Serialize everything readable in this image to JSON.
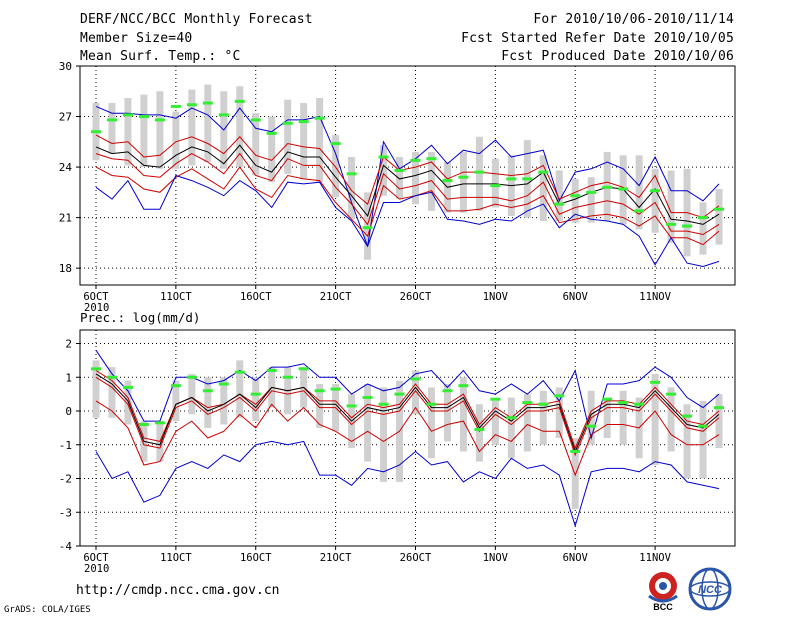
{
  "header": {
    "title": "DERF/NCC/BCC Monthly Forecast",
    "member": "Member Size=40",
    "variable": "Mean Surf. Temp.: °C",
    "period": "For 2010/10/06-2010/11/14",
    "started": "Fcst Started Refer Date 2010/10/05",
    "produced": "Fcst Produced Date 2010/10/06"
  },
  "footer": {
    "url": "http://cmdp.ncc.cma.gov.cn",
    "grads": "GrADS: COLA/IGES",
    "logo_bcc": "BCC",
    "logo_ncc": "NCC"
  },
  "colors": {
    "blue": "#0000cc",
    "red": "#cc0000",
    "black": "#000000",
    "green": "#33ee33",
    "gray": "#d0d0d0"
  },
  "chart_data": [
    {
      "type": "line",
      "title": "Mean Surf. Temp.: °C",
      "ylim": [
        17,
        30
      ],
      "yticks": [
        18,
        21,
        24,
        27,
        30
      ],
      "xticks": [
        {
          "day": 1,
          "label": "6OCT",
          "sub": "2010"
        },
        {
          "day": 6,
          "label": "11OCT"
        },
        {
          "day": 11,
          "label": "16OCT"
        },
        {
          "day": 16,
          "label": "21OCT"
        },
        {
          "day": 21,
          "label": "26OCT"
        },
        {
          "day": 26,
          "label": "1NOV"
        },
        {
          "day": 31,
          "label": "6NOV"
        },
        {
          "day": 36,
          "label": "11NOV"
        }
      ],
      "x_days": [
        1,
        2,
        3,
        4,
        5,
        6,
        7,
        8,
        9,
        10,
        11,
        12,
        13,
        14,
        15,
        16,
        17,
        18,
        19,
        20,
        21,
        22,
        23,
        24,
        25,
        26,
        27,
        28,
        29,
        30,
        31,
        32,
        33,
        34,
        35,
        36,
        37,
        38,
        39,
        40
      ],
      "series": [
        {
          "name": "max",
          "color": "blue",
          "values": [
            27.6,
            27.2,
            27.2,
            27.1,
            27.1,
            26.9,
            27.5,
            27.1,
            26.2,
            27.5,
            26.3,
            26.1,
            26.8,
            26.8,
            27.0,
            24.8,
            21.9,
            19.3,
            25.5,
            23.9,
            24.5,
            25.3,
            24.2,
            25.0,
            24.8,
            25.6,
            24.6,
            24.8,
            25.0,
            22.0,
            23.7,
            23.9,
            24.3,
            23.9,
            22.9,
            24.6,
            22.6,
            22.6,
            22.0,
            23.0
          ]
        },
        {
          "name": "upper",
          "color": "red",
          "values": [
            25.9,
            25.4,
            25.5,
            24.6,
            24.7,
            25.5,
            25.8,
            25.4,
            24.8,
            25.8,
            24.7,
            24.4,
            25.4,
            25.2,
            25.1,
            24.0,
            22.6,
            21.8,
            24.6,
            23.8,
            24.0,
            24.3,
            23.3,
            23.7,
            23.7,
            23.6,
            23.5,
            23.6,
            24.1,
            22.1,
            22.5,
            22.9,
            23.1,
            22.8,
            22.2,
            23.5,
            21.3,
            21.3,
            21.0,
            21.7
          ]
        },
        {
          "name": "mean",
          "color": "black",
          "values": [
            25.2,
            24.8,
            24.9,
            24.1,
            24.0,
            24.7,
            25.2,
            24.9,
            24.2,
            25.3,
            24.1,
            23.7,
            24.9,
            24.6,
            24.6,
            23.4,
            22.3,
            21.1,
            24.1,
            23.3,
            23.5,
            23.8,
            22.8,
            23.0,
            23.0,
            23.0,
            22.9,
            23.0,
            23.7,
            21.8,
            22.1,
            22.5,
            22.8,
            22.7,
            21.6,
            22.7,
            20.9,
            20.8,
            20.6,
            21.2
          ]
        },
        {
          "name": "lower",
          "color": "red",
          "values": [
            24.8,
            24.5,
            24.4,
            23.5,
            23.4,
            24.2,
            24.8,
            24.3,
            23.6,
            24.8,
            23.5,
            23.2,
            24.5,
            24.1,
            24.1,
            22.8,
            21.8,
            20.6,
            23.6,
            22.7,
            22.9,
            23.2,
            22.1,
            22.2,
            22.2,
            22.2,
            22.0,
            22.3,
            23.1,
            21.2,
            21.6,
            21.8,
            22.0,
            21.8,
            21.2,
            21.9,
            20.2,
            20.2,
            20.0,
            20.6
          ]
        },
        {
          "name": "lower2",
          "color": "red",
          "values": [
            24.0,
            23.5,
            23.4,
            22.7,
            22.5,
            23.4,
            23.9,
            23.3,
            22.7,
            24.0,
            22.7,
            22.2,
            23.5,
            23.3,
            23.2,
            21.9,
            20.9,
            19.9,
            22.9,
            22.1,
            22.3,
            22.6,
            21.4,
            21.4,
            21.5,
            21.8,
            21.6,
            21.8,
            22.3,
            20.7,
            20.9,
            21.1,
            21.2,
            21.0,
            20.5,
            21.1,
            19.8,
            19.8,
            19.4,
            20.2
          ]
        },
        {
          "name": "min",
          "color": "blue",
          "values": [
            22.8,
            22.1,
            23.2,
            21.5,
            21.5,
            23.5,
            23.2,
            22.8,
            22.3,
            23.2,
            22.6,
            21.6,
            23.1,
            23.0,
            23.1,
            21.6,
            20.8,
            19.3,
            21.9,
            21.9,
            22.3,
            22.5,
            20.9,
            20.8,
            20.6,
            20.9,
            20.8,
            21.4,
            21.8,
            20.4,
            21.2,
            20.9,
            20.8,
            20.6,
            19.9,
            18.2,
            19.8,
            18.3,
            18.1,
            18.4
          ]
        }
      ],
      "ensemble_boxes": [
        [
          24.4,
          27.8
        ],
        [
          24.8,
          27.8
        ],
        [
          24.1,
          28.1
        ],
        [
          24.0,
          28.3
        ],
        [
          23.9,
          28.5
        ],
        [
          23.9,
          27.3
        ],
        [
          24.1,
          28.6
        ],
        [
          24.3,
          28.9
        ],
        [
          23.9,
          28.5
        ],
        [
          24.0,
          28.8
        ],
        [
          23.5,
          27.2
        ],
        [
          23.1,
          27.0
        ],
        [
          23.6,
          28.0
        ],
        [
          23.3,
          27.8
        ],
        [
          23.1,
          28.1
        ],
        [
          22.2,
          25.9
        ],
        [
          20.9,
          24.6
        ],
        [
          18.5,
          22.5
        ],
        [
          22.3,
          25.3
        ],
        [
          22.1,
          24.6
        ],
        [
          21.8,
          24.9
        ],
        [
          21.4,
          24.9
        ],
        [
          21.3,
          24.3
        ],
        [
          21.3,
          24.9
        ],
        [
          21.4,
          25.8
        ],
        [
          21.6,
          24.5
        ],
        [
          21.1,
          24.7
        ],
        [
          21.0,
          25.6
        ],
        [
          20.8,
          24.7
        ],
        [
          20.8,
          23.8
        ],
        [
          20.7,
          23.3
        ],
        [
          20.7,
          23.4
        ],
        [
          20.8,
          24.9
        ],
        [
          20.6,
          24.7
        ],
        [
          20.3,
          24.7
        ],
        [
          20.1,
          23.9
        ],
        [
          19.5,
          23.8
        ],
        [
          18.7,
          23.9
        ],
        [
          18.8,
          21.9
        ],
        [
          19.4,
          22.7
        ]
      ],
      "observed": [
        26.1,
        26.8,
        27.1,
        27.0,
        26.8,
        27.6,
        27.7,
        27.8,
        27.1,
        27.9,
        26.8,
        26.0,
        26.6,
        26.7,
        26.9,
        25.4,
        23.6,
        20.4,
        24.6,
        23.8,
        24.4,
        24.5,
        23.2,
        23.4,
        23.7,
        22.9,
        23.3,
        23.3,
        23.7,
        21.8,
        22.3,
        22.5,
        22.8,
        22.7,
        21.4,
        22.6,
        20.6,
        20.5,
        21.0,
        21.5
      ]
    },
    {
      "type": "line",
      "title": "Prec.: log(mm/d)",
      "ylim": [
        -4,
        2.4
      ],
      "yticks": [
        -4,
        -3,
        -2,
        -1,
        0,
        1,
        2
      ],
      "xticks": [
        {
          "day": 1,
          "label": "6OCT",
          "sub": "2010"
        },
        {
          "day": 6,
          "label": "11OCT"
        },
        {
          "day": 11,
          "label": "16OCT"
        },
        {
          "day": 16,
          "label": "21OCT"
        },
        {
          "day": 21,
          "label": "26OCT"
        },
        {
          "day": 26,
          "label": "1NOV"
        },
        {
          "day": 31,
          "label": "6NOV"
        },
        {
          "day": 36,
          "label": "11NOV"
        }
      ],
      "x_days": [
        1,
        2,
        3,
        4,
        5,
        6,
        7,
        8,
        9,
        10,
        11,
        12,
        13,
        14,
        15,
        16,
        17,
        18,
        19,
        20,
        21,
        22,
        23,
        24,
        25,
        26,
        27,
        28,
        29,
        30,
        31,
        32,
        33,
        34,
        35,
        36,
        37,
        38,
        39,
        40
      ],
      "series": [
        {
          "name": "max",
          "color": "blue",
          "values": [
            1.8,
            1.1,
            0.6,
            -0.3,
            -0.3,
            1.0,
            1.0,
            0.8,
            0.9,
            1.2,
            0.9,
            1.3,
            1.3,
            1.4,
            1.0,
            1.0,
            0.5,
            0.8,
            0.6,
            0.7,
            1.1,
            1.2,
            0.7,
            1.2,
            0.6,
            0.5,
            0.8,
            0.5,
            0.9,
            0.3,
            1.2,
            -0.8,
            0.8,
            0.8,
            0.9,
            1.3,
            1.0,
            0.4,
            0.1,
            0.5
          ]
        },
        {
          "name": "upper",
          "color": "red",
          "values": [
            1.2,
            0.9,
            0.4,
            -0.8,
            -0.9,
            0.2,
            0.4,
            0.1,
            0.2,
            0.5,
            0.2,
            0.7,
            0.6,
            0.7,
            0.3,
            0.3,
            -0.2,
            0.2,
            0.1,
            0.2,
            0.8,
            0.2,
            0.2,
            0.5,
            -0.4,
            0.1,
            -0.2,
            0.2,
            0.2,
            0.3,
            -1.1,
            0.0,
            0.3,
            0.3,
            0.2,
            0.7,
            0.2,
            -0.3,
            -0.4,
            0.0
          ]
        },
        {
          "name": "mean",
          "color": "black",
          "values": [
            1.1,
            0.8,
            0.3,
            -0.9,
            -1.0,
            0.2,
            0.4,
            0.0,
            0.2,
            0.5,
            0.1,
            0.7,
            0.6,
            0.7,
            0.2,
            0.2,
            -0.3,
            0.1,
            0.0,
            0.1,
            0.7,
            0.1,
            0.1,
            0.4,
            -0.5,
            0.0,
            -0.3,
            0.1,
            0.1,
            0.2,
            -1.2,
            -0.1,
            0.2,
            0.2,
            0.1,
            0.6,
            0.1,
            -0.4,
            -0.5,
            -0.1
          ]
        },
        {
          "name": "lower",
          "color": "red",
          "values": [
            1.0,
            0.7,
            0.2,
            -1.0,
            -1.1,
            0.1,
            0.3,
            -0.1,
            0.1,
            0.4,
            0.0,
            0.6,
            0.5,
            0.6,
            0.1,
            0.1,
            -0.4,
            0.0,
            -0.1,
            0.0,
            0.6,
            0.0,
            0.0,
            0.3,
            -0.6,
            -0.1,
            -0.4,
            0.0,
            0.0,
            0.1,
            -1.3,
            -0.2,
            0.1,
            0.1,
            0.0,
            0.5,
            0.0,
            -0.5,
            -0.6,
            -0.2
          ]
        },
        {
          "name": "lower2",
          "color": "red",
          "values": [
            0.3,
            0.0,
            -0.5,
            -1.6,
            -1.5,
            -0.6,
            -0.3,
            -0.8,
            -0.6,
            -0.1,
            -0.5,
            0.2,
            -0.3,
            0.1,
            -0.4,
            -0.6,
            -0.9,
            -0.6,
            -0.9,
            -0.6,
            0.1,
            -0.6,
            -0.4,
            -0.3,
            -1.2,
            -0.7,
            -0.9,
            -0.4,
            -0.6,
            -0.6,
            -1.9,
            -0.7,
            -0.4,
            -0.4,
            -0.5,
            0.0,
            -0.7,
            -1.0,
            -1.0,
            -0.7
          ]
        },
        {
          "name": "min",
          "color": "blue",
          "values": [
            -1.2,
            -2.0,
            -1.8,
            -2.7,
            -2.5,
            -1.7,
            -1.5,
            -1.7,
            -1.3,
            -1.5,
            -1.0,
            -0.9,
            -1.0,
            -0.9,
            -1.9,
            -1.9,
            -2.2,
            -1.7,
            -1.8,
            -1.6,
            -1.2,
            -1.6,
            -1.5,
            -2.1,
            -1.8,
            -2.0,
            -1.4,
            -1.7,
            -1.6,
            -1.9,
            -3.4,
            -1.8,
            -1.7,
            -1.7,
            -1.8,
            -1.5,
            -1.6,
            -2.1,
            -2.2,
            -2.3
          ]
        }
      ],
      "ensemble_boxes": [
        [
          -0.2,
          1.5
        ],
        [
          -0.2,
          1.3
        ],
        [
          -0.4,
          0.9
        ],
        [
          -1.5,
          -0.3
        ],
        [
          -1.5,
          -0.3
        ],
        [
          -0.3,
          0.9
        ],
        [
          -0.1,
          1.1
        ],
        [
          -0.5,
          1.0
        ],
        [
          -0.4,
          1.0
        ],
        [
          -0.2,
          1.5
        ],
        [
          -0.3,
          1.0
        ],
        [
          0.1,
          1.3
        ],
        [
          -0.1,
          1.3
        ],
        [
          0.1,
          1.3
        ],
        [
          -0.5,
          0.8
        ],
        [
          -0.6,
          0.8
        ],
        [
          -1.1,
          0.5
        ],
        [
          -1.5,
          0.8
        ],
        [
          -2.1,
          0.7
        ],
        [
          -2.1,
          0.9
        ],
        [
          -0.1,
          1.2
        ],
        [
          -1.4,
          0.7
        ],
        [
          -0.9,
          0.8
        ],
        [
          -1.2,
          1.0
        ],
        [
          -1.5,
          0.2
        ],
        [
          -1.0,
          0.3
        ],
        [
          -1.4,
          0.4
        ],
        [
          -1.2,
          0.5
        ],
        [
          -1.0,
          0.6
        ],
        [
          -0.8,
          0.7
        ],
        [
          -2.9,
          -0.8
        ],
        [
          -1.0,
          0.6
        ],
        [
          -0.8,
          0.4
        ],
        [
          -1.0,
          0.6
        ],
        [
          -1.4,
          0.4
        ],
        [
          -1.6,
          1.1
        ],
        [
          -1.2,
          0.7
        ],
        [
          -2.0,
          0.2
        ],
        [
          -2.0,
          0.3
        ],
        [
          -1.1,
          0.5
        ]
      ],
      "observed": [
        1.25,
        1.0,
        0.7,
        -0.4,
        -0.35,
        0.75,
        1.0,
        0.6,
        0.8,
        1.15,
        0.5,
        1.2,
        1.0,
        1.25,
        0.6,
        0.65,
        0.15,
        0.4,
        0.2,
        0.5,
        0.95,
        0.2,
        0.6,
        0.75,
        -0.55,
        0.35,
        -0.2,
        0.25,
        0.2,
        0.45,
        -1.2,
        -0.45,
        0.35,
        0.25,
        0.2,
        0.85,
        0.5,
        -0.15,
        -0.45,
        0.1
      ]
    }
  ]
}
